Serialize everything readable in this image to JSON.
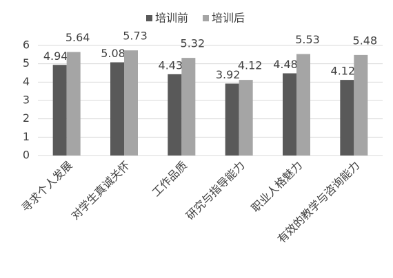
{
  "chart_data": {
    "type": "bar",
    "categories": [
      "寻求个人发展",
      "对学生真诚关怀",
      "工作品质",
      "研究与指导能力",
      "职业人格魅力",
      "有效的教学与咨询能力"
    ],
    "series": [
      {
        "name": "培训前",
        "color": "#595959",
        "values": [
          4.94,
          5.08,
          4.43,
          3.92,
          4.48,
          4.12
        ]
      },
      {
        "name": "培训后",
        "color": "#a5a5a5",
        "values": [
          5.64,
          5.73,
          5.32,
          4.12,
          5.53,
          5.48
        ]
      }
    ],
    "ylim": [
      0,
      6
    ],
    "yticks": [
      0,
      1,
      2,
      3,
      4,
      5,
      6
    ],
    "grid": true,
    "legend": "top"
  }
}
